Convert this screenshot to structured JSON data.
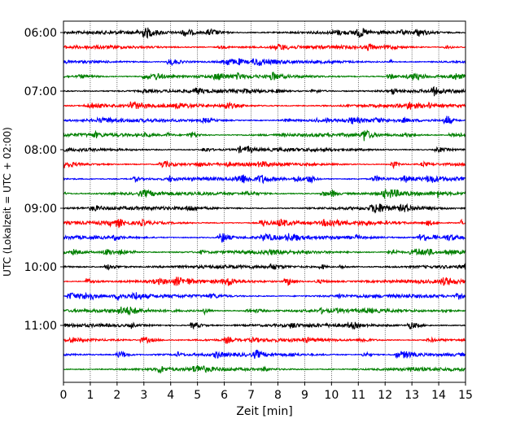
{
  "chart_data": {
    "type": "line",
    "title": "",
    "xlabel": "Zeit  [min]",
    "ylabel": "UTC (Lokalzeit = UTC + 02:00)",
    "xlim": [
      0,
      15
    ],
    "x_ticks": [
      "0",
      "1",
      "2",
      "3",
      "4",
      "5",
      "6",
      "7",
      "8",
      "9",
      "10",
      "11",
      "12",
      "13",
      "14",
      "15"
    ],
    "y_tick_labels": [
      "06:00",
      "07:00",
      "08:00",
      "09:00",
      "10:00",
      "11:00"
    ],
    "grid": "vertical dotted at each minute",
    "trace_colors": [
      "#000000",
      "#ff0000",
      "#0000ff",
      "#008000"
    ],
    "traces": [
      {
        "start": "06:00",
        "color": "#000000"
      },
      {
        "start": "06:15",
        "color": "#ff0000"
      },
      {
        "start": "06:30",
        "color": "#0000ff"
      },
      {
        "start": "06:45",
        "color": "#008000"
      },
      {
        "start": "07:00",
        "color": "#000000"
      },
      {
        "start": "07:15",
        "color": "#ff0000"
      },
      {
        "start": "07:30",
        "color": "#0000ff"
      },
      {
        "start": "07:45",
        "color": "#008000"
      },
      {
        "start": "08:00",
        "color": "#000000"
      },
      {
        "start": "08:15",
        "color": "#ff0000"
      },
      {
        "start": "08:30",
        "color": "#0000ff"
      },
      {
        "start": "08:45",
        "color": "#008000"
      },
      {
        "start": "09:00",
        "color": "#000000"
      },
      {
        "start": "09:15",
        "color": "#ff0000"
      },
      {
        "start": "09:30",
        "color": "#0000ff"
      },
      {
        "start": "09:45",
        "color": "#008000"
      },
      {
        "start": "10:00",
        "color": "#000000"
      },
      {
        "start": "10:15",
        "color": "#ff0000"
      },
      {
        "start": "10:30",
        "color": "#0000ff"
      },
      {
        "start": "10:45",
        "color": "#008000"
      },
      {
        "start": "11:00",
        "color": "#000000"
      },
      {
        "start": "11:15",
        "color": "#ff0000"
      },
      {
        "start": "11:30",
        "color": "#0000ff"
      },
      {
        "start": "11:45",
        "color": "#008000"
      }
    ]
  }
}
